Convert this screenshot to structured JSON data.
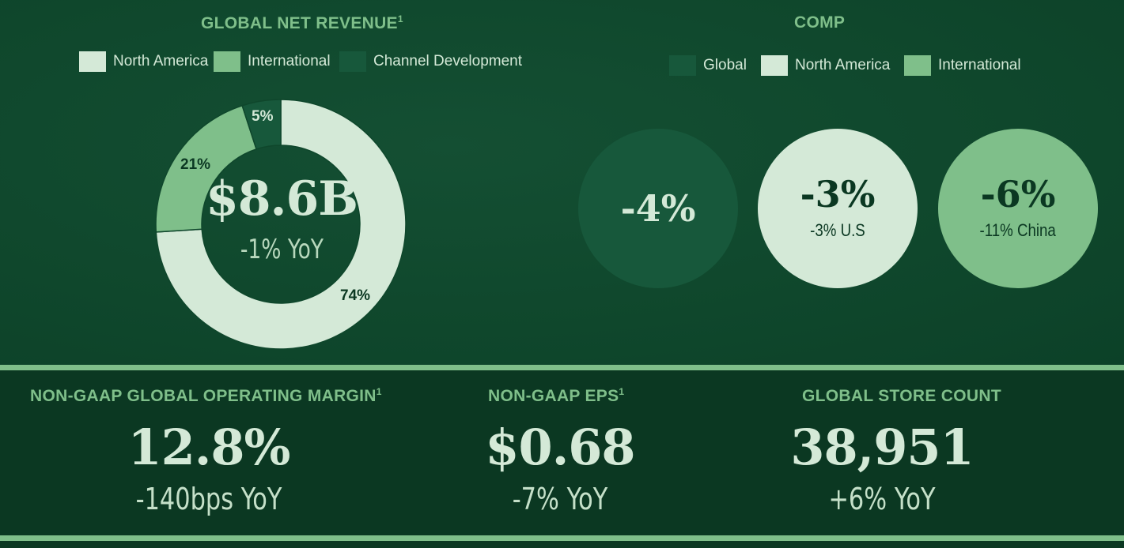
{
  "colors": {
    "north_america": "#d4e9d7",
    "international": "#7fbf8a",
    "channel_development": "#17583b",
    "global": "#17583b",
    "title_green": "#7fbf8a"
  },
  "revenue": {
    "title": "GLOBAL NET REVENUE",
    "footnote": "1",
    "total": "$8.6B",
    "yoy": "-1% YoY"
  },
  "comp": {
    "title": "COMP",
    "legend": [
      "Global",
      "North America",
      "International"
    ],
    "circles": [
      {
        "value": "-4%",
        "sub": ""
      },
      {
        "value": "-3%",
        "sub": "-3% U.S"
      },
      {
        "value": "-6%",
        "sub": "-11% China"
      }
    ]
  },
  "metrics": [
    {
      "title": "NON-GAAP GLOBAL OPERATING MARGIN",
      "footnote": "1",
      "value": "12.8%",
      "yoy": "-140bps YoY"
    },
    {
      "title": "NON-GAAP EPS",
      "footnote": "1",
      "value": "$0.68",
      "yoy": "-7% YoY"
    },
    {
      "title": "GLOBAL STORE COUNT",
      "footnote": "",
      "value": "38,951",
      "yoy": "+6% YoY"
    }
  ],
  "chart_data": {
    "type": "pie",
    "categories": [
      "North America",
      "International",
      "Channel Development"
    ],
    "values": [
      74,
      21,
      5
    ],
    "labels": [
      "74%",
      "21%",
      "5%"
    ],
    "legend_position": "top"
  }
}
